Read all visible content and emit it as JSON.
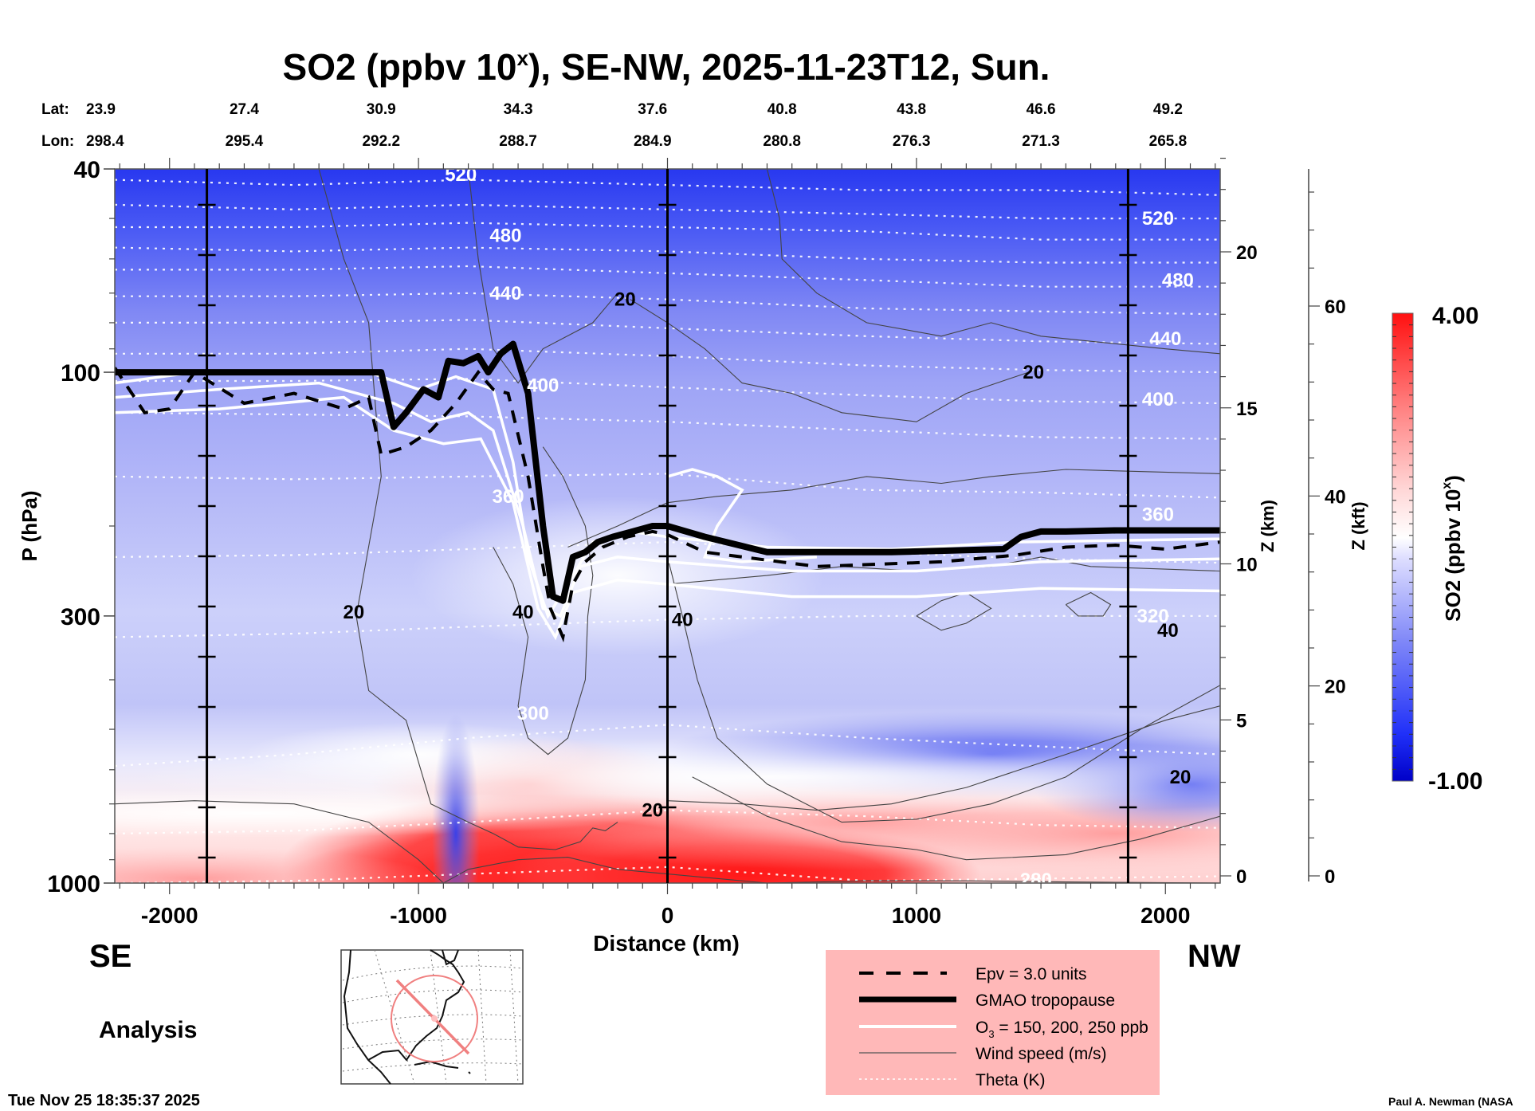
{
  "chart_data": {
    "type": "heatmap",
    "title": "SO2 (ppbv 10",
    "title_superscript": "x",
    "title_suffix": "), SE-NW, 2025-11-23T12, Sun.",
    "xlabel": "Distance (km)",
    "ylabel": "P (hPa)",
    "xlim": [
      -2220,
      2220
    ],
    "ylim_hpa": [
      1000,
      40
    ],
    "y_scale": "log",
    "x_ticks": [
      -2000,
      -1000,
      0,
      1000,
      2000
    ],
    "x_tick_labels": [
      "-2000",
      "-1000",
      "0",
      "1000",
      "2000"
    ],
    "y_ticks": [
      40,
      100,
      300,
      1000
    ],
    "y_tick_labels": [
      "40",
      "100",
      "300",
      "1000"
    ],
    "lat_label": "Lat:",
    "lon_label": "Lon:",
    "lat_values": [
      "23.9",
      "27.4",
      "30.9",
      "34.3",
      "37.6",
      "40.8",
      "43.8",
      "46.6",
      "49.2"
    ],
    "lon_values": [
      "298.4",
      "295.4",
      "292.2",
      "288.7",
      "284.9",
      "280.8",
      "276.3",
      "271.3",
      "265.8"
    ],
    "latlon_distances_km": [
      -2220,
      -1700,
      -1150,
      -600,
      -60,
      460,
      980,
      1500,
      2010
    ],
    "vertical_marker_lines_km": [
      -1850,
      0,
      1850
    ],
    "z_km_axis": {
      "label": "Z (km)",
      "ticks": [
        0,
        5,
        10,
        15,
        20
      ],
      "tick_labels": [
        "0",
        "5",
        "10",
        "15",
        "20"
      ]
    },
    "z_kft_axis": {
      "label": "Z (kft)",
      "ticks": [
        0,
        20,
        40,
        60
      ],
      "tick_labels": [
        "0",
        "20",
        "40",
        "60"
      ]
    },
    "colorbar": {
      "label": "SO2 (ppbv 10",
      "label_superscript": "x",
      "label_suffix": ")",
      "min": -1.0,
      "max": 4.0,
      "min_label": "-1.00",
      "max_label": "4.00",
      "low_color": "#0000d8",
      "mid_color": "#ffffff",
      "high_color": "#ff1010"
    },
    "theta_contours_K": [
      {
        "value": 520,
        "label": "520",
        "label_points": [
          [
            -830,
            41
          ],
          [
            1970,
            50
          ]
        ]
      },
      {
        "value": 480,
        "label": "480",
        "label_points": [
          [
            -650,
            54
          ],
          [
            2050,
            66
          ]
        ]
      },
      {
        "value": 440,
        "label": "440",
        "label_points": [
          [
            -650,
            70
          ],
          [
            2000,
            86
          ]
        ]
      },
      {
        "value": 400,
        "label": "400",
        "label_points": [
          [
            -500,
            106
          ],
          [
            1970,
            113
          ]
        ]
      },
      {
        "value": 360,
        "label": "360",
        "label_points": [
          [
            -640,
            175
          ],
          [
            1970,
            190
          ]
        ]
      },
      {
        "value": 320,
        "label": "320",
        "label_points": [
          [
            1950,
            300
          ]
        ]
      },
      {
        "value": 300,
        "label": "300",
        "label_points": [
          [
            -540,
            465
          ]
        ]
      },
      {
        "value": 280,
        "label": "280",
        "label_points": [
          [
            1480,
            985
          ]
        ]
      }
    ],
    "wind_speed_labels_ms": [
      {
        "label": "20",
        "x_km": -1260,
        "p": 295
      },
      {
        "label": "40",
        "x_km": -580,
        "p": 295
      },
      {
        "label": "20",
        "x_km": -170,
        "p": 72
      },
      {
        "label": "40",
        "x_km": 60,
        "p": 305
      },
      {
        "label": "20",
        "x_km": 1470,
        "p": 100
      },
      {
        "label": "40",
        "x_km": 2010,
        "p": 320
      },
      {
        "label": "20",
        "x_km": -60,
        "p": 720
      },
      {
        "label": "20",
        "x_km": 2060,
        "p": 620
      }
    ],
    "gmao_tropopause_hpa": {
      "x_km": [
        -2220,
        -1900,
        -1200,
        -1150,
        -1100,
        -1050,
        -980,
        -920,
        -880,
        -820,
        -760,
        -720,
        -670,
        -620,
        -560,
        -500,
        -460,
        -420,
        -380,
        -330,
        -280,
        -220,
        -140,
        -60,
        0,
        150,
        400,
        900,
        1350,
        1420,
        1500,
        1600,
        1800,
        2220
      ],
      "p_hpa": [
        100,
        100,
        100,
        100,
        128,
        120,
        108,
        112,
        95,
        96,
        93,
        100,
        92,
        88,
        110,
        200,
        275,
        280,
        230,
        225,
        215,
        210,
        205,
        200,
        200,
        210,
        225,
        225,
        222,
        210,
        205,
        205,
        204,
        204
      ]
    },
    "epv_3pvu_hpa": {
      "x_km": [
        -2220,
        -2100,
        -2000,
        -1900,
        -1700,
        -1500,
        -1300,
        -1200,
        -1150,
        -1050,
        -950,
        -850,
        -760,
        -700,
        -640,
        -560,
        -500,
        -470,
        -420,
        -380,
        -330,
        -260,
        -160,
        -60,
        0,
        150,
        600,
        1100,
        1400,
        1600,
        1800,
        2000,
        2220
      ],
      "p_hpa": [
        98,
        120,
        118,
        100,
        115,
        110,
        118,
        112,
        145,
        140,
        130,
        115,
        100,
        108,
        110,
        160,
        240,
        290,
        330,
        260,
        235,
        220,
        210,
        205,
        208,
        225,
        240,
        235,
        228,
        220,
        218,
        222,
        215
      ]
    },
    "legend": {
      "items": [
        {
          "label": "Epv = 3.0 units",
          "style": "dashed-black"
        },
        {
          "label": "GMAO tropopause",
          "style": "thick-black"
        },
        {
          "label": "O",
          "subscript": "3",
          "label_suffix": " = 150, 200, 250 ppb",
          "style": "white"
        },
        {
          "label": "Wind speed (m/s)",
          "style": "thin-black"
        },
        {
          "label": "Theta (K)",
          "style": "dotted-white"
        }
      ],
      "background": "#ffb8b8"
    },
    "direction_left": "SE",
    "direction_right": "NW",
    "product_label": "Analysis",
    "timestamp": "Tue Nov 25 18:35:37 2025",
    "credit": "Paul A. Newman (NASA",
    "inset_map": {
      "description": "North America orthographic map with SE-NW transect",
      "transect_color": "#f08080"
    }
  }
}
